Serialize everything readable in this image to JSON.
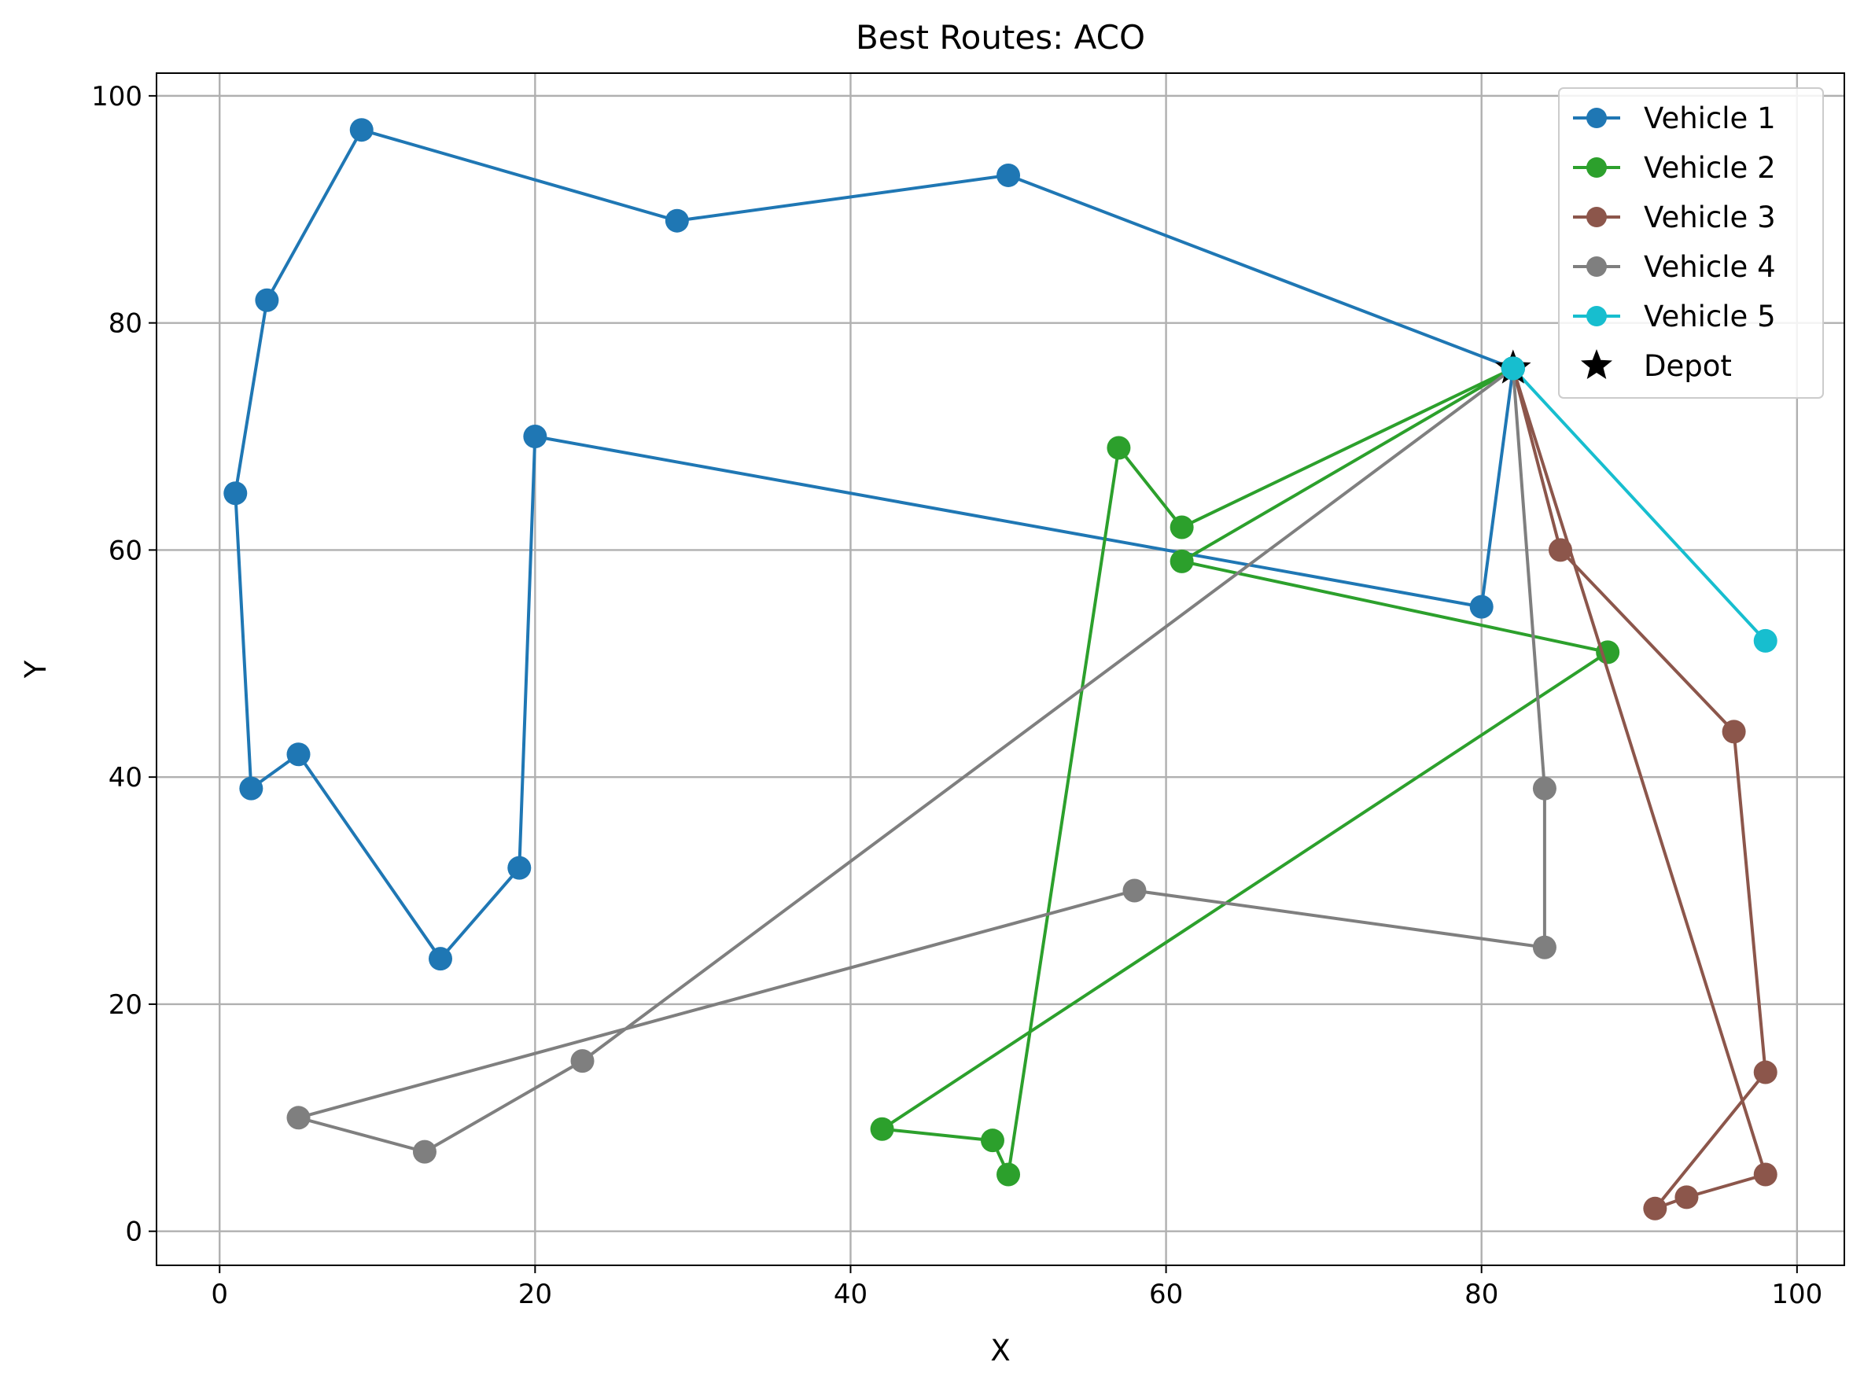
{
  "chart_data": {
    "type": "line",
    "title": "Best Routes: ACO",
    "xlabel": "X",
    "ylabel": "Y",
    "xlim": [
      -4,
      103
    ],
    "ylim": [
      -3,
      102
    ],
    "xticks": [
      0,
      20,
      40,
      60,
      80,
      100
    ],
    "yticks": [
      0,
      20,
      40,
      60,
      80,
      100
    ],
    "grid": true,
    "legend": {
      "position": "top-right"
    },
    "series": [
      {
        "name": "Vehicle 1",
        "color": "#1f77b4",
        "marker": "circle",
        "points": [
          [
            82,
            76
          ],
          [
            50,
            93
          ],
          [
            29,
            89
          ],
          [
            9,
            97
          ],
          [
            3,
            82
          ],
          [
            1,
            65
          ],
          [
            2,
            39
          ],
          [
            5,
            42
          ],
          [
            14,
            24
          ],
          [
            19,
            32
          ],
          [
            20,
            70
          ],
          [
            80,
            55
          ],
          [
            82,
            76
          ]
        ]
      },
      {
        "name": "Vehicle 2",
        "color": "#2ca02c",
        "marker": "circle",
        "points": [
          [
            82,
            76
          ],
          [
            61,
            62
          ],
          [
            57,
            69
          ],
          [
            50,
            5
          ],
          [
            49,
            8
          ],
          [
            42,
            9
          ],
          [
            88,
            51
          ],
          [
            61,
            59
          ],
          [
            82,
            76
          ]
        ]
      },
      {
        "name": "Vehicle 3",
        "color": "#8c564b",
        "marker": "circle",
        "points": [
          [
            82,
            76
          ],
          [
            98,
            5
          ],
          [
            93,
            3
          ],
          [
            91,
            2
          ],
          [
            98,
            14
          ],
          [
            96,
            44
          ],
          [
            85,
            60
          ],
          [
            82,
            76
          ]
        ]
      },
      {
        "name": "Vehicle 4",
        "color": "#7f7f7f",
        "marker": "circle",
        "points": [
          [
            82,
            76
          ],
          [
            23,
            15
          ],
          [
            13,
            7
          ],
          [
            5,
            10
          ],
          [
            58,
            30
          ],
          [
            84,
            25
          ],
          [
            84,
            39
          ],
          [
            82,
            76
          ]
        ]
      },
      {
        "name": "Vehicle 5",
        "color": "#17becf",
        "marker": "circle",
        "points": [
          [
            82,
            76
          ],
          [
            98,
            52
          ],
          [
            82,
            76
          ]
        ]
      }
    ],
    "depot": {
      "name": "Depot",
      "color": "#000000",
      "marker": "star",
      "point": [
        82,
        76
      ]
    }
  }
}
